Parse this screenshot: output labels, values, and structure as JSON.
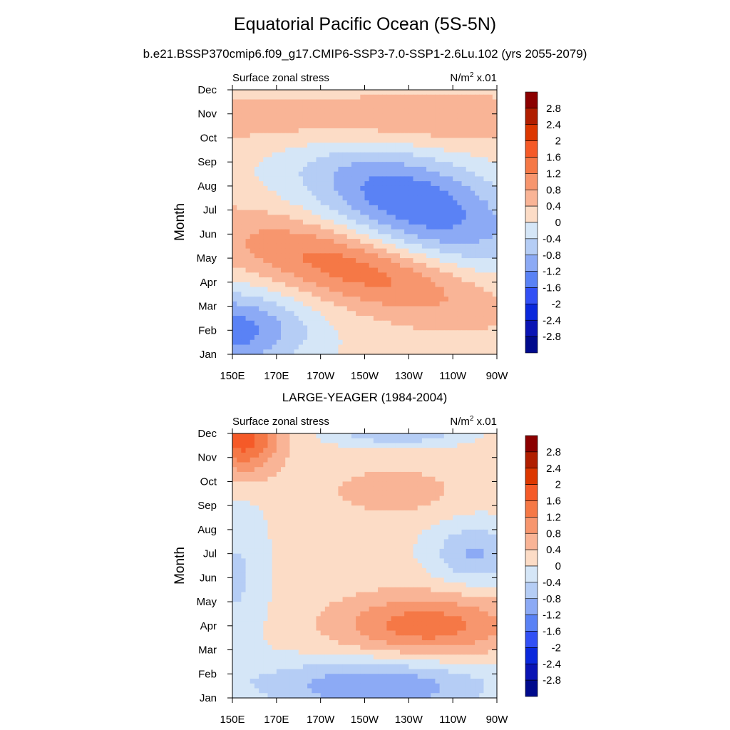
{
  "title": "Equatorial Pacific Ocean (5S-5N)",
  "subtitle": "b.e21.BSSP370cmip6.f09_g17.CMIP6-SSP3-7.0-SSP1-2.6Lu.102 (yrs 2055-2079)",
  "colorbar": {
    "labels": [
      "2.8",
      "2.4",
      "2",
      "1.6",
      "1.2",
      "0.8",
      "0.4",
      "0",
      "-0.4",
      "-0.8",
      "-1.2",
      "-1.6",
      "-2",
      "-2.4",
      "-2.8"
    ],
    "colors": [
      "#8b0000",
      "#b01e00",
      "#dc3700",
      "#f55a28",
      "#f57846",
      "#f7966e",
      "#f9b496",
      "#fcdcc6",
      "#d5e6f7",
      "#b5cdf5",
      "#8caaf5",
      "#5a82f5",
      "#3250f5",
      "#0a28dc",
      "#0a14b4",
      "#000a8c"
    ]
  },
  "chart_data": [
    {
      "type": "heatmap",
      "title": "",
      "left_label": "Surface zonal stress",
      "units_label": "N/m",
      "units_sup": "2",
      "units_scale": " x.01",
      "xlabel": "",
      "ylabel": "Month",
      "x_ticks": [
        "150E",
        "170E",
        "170W",
        "150W",
        "130W",
        "110W",
        "90W"
      ],
      "y_ticks": [
        "Jan",
        "Feb",
        "Mar",
        "Apr",
        "May",
        "Jun",
        "Jul",
        "Aug",
        "Sep",
        "Oct",
        "Nov",
        "Dec"
      ],
      "contour_levels": [
        -2.8,
        -2.4,
        -2,
        -1.6,
        -1.2,
        -0.8,
        -0.4,
        0,
        0.4,
        0.8,
        1.2,
        1.6,
        2,
        2.4,
        2.8
      ],
      "features": [
        {
          "lon": 148,
          "month": 2.0,
          "value": -1.6,
          "lon_radius": 35,
          "month_radius": 1.6,
          "tilt": 0.0
        },
        {
          "lon": 205,
          "month": 4.6,
          "value": 1.3,
          "lon_radius": 60,
          "month_radius": 1.6,
          "tilt": -0.022
        },
        {
          "lon": 232,
          "month": 7.3,
          "value": -1.7,
          "lon_radius": 50,
          "month_radius": 2.2,
          "tilt": -0.025
        },
        {
          "lon": 210,
          "month": 10.7,
          "value": 0.7,
          "lon_radius": 90,
          "month_radius": 1.3,
          "tilt": 0.0
        },
        {
          "lon": 200,
          "month": 12.0,
          "value": -0.2,
          "lon_radius": 40,
          "month_radius": 0.3,
          "tilt": 0.0
        }
      ]
    },
    {
      "type": "heatmap",
      "title": "LARGE-YEAGER (1984-2004)",
      "left_label": "Surface zonal stress",
      "units_label": "N/m",
      "units_sup": "2",
      "units_scale": " x.01",
      "xlabel": "",
      "ylabel": "Month",
      "x_ticks": [
        "150E",
        "170E",
        "170W",
        "150W",
        "130W",
        "110W",
        "90W"
      ],
      "y_ticks": [
        "Jan",
        "Feb",
        "Mar",
        "Apr",
        "May",
        "Jun",
        "Jul",
        "Aug",
        "Sep",
        "Oct",
        "Nov",
        "Dec"
      ],
      "contour_levels": [
        -2.8,
        -2.4,
        -2,
        -1.6,
        -1.2,
        -0.8,
        -0.4,
        0,
        0.4,
        0.8,
        1.2,
        1.6,
        2,
        2.4,
        2.8
      ],
      "features": [
        {
          "lon": 155,
          "month": 11.8,
          "value": 1.7,
          "lon_radius": 16,
          "month_radius": 1.5,
          "tilt": 0.0
        },
        {
          "lon": 238,
          "month": 4.0,
          "value": 1.3,
          "lon_radius": 40,
          "month_radius": 1.3,
          "tilt": 0.0
        },
        {
          "lon": 223,
          "month": 9.6,
          "value": 0.6,
          "lon_radius": 26,
          "month_radius": 0.9,
          "tilt": 0.0
        },
        {
          "lon": 215,
          "month": 1.5,
          "value": -1.3,
          "lon_radius": 55,
          "month_radius": 1.2,
          "tilt": 0.0
        },
        {
          "lon": 260,
          "month": 7.0,
          "value": -1.0,
          "lon_radius": 20,
          "month_radius": 1.3,
          "tilt": 0.0
        },
        {
          "lon": 225,
          "month": 12.0,
          "value": -0.9,
          "lon_radius": 30,
          "month_radius": 0.5,
          "tilt": 0.0
        },
        {
          "lon": 152,
          "month": 6.0,
          "value": -0.6,
          "lon_radius": 14,
          "month_radius": 3.5,
          "tilt": 0.0
        }
      ]
    }
  ]
}
